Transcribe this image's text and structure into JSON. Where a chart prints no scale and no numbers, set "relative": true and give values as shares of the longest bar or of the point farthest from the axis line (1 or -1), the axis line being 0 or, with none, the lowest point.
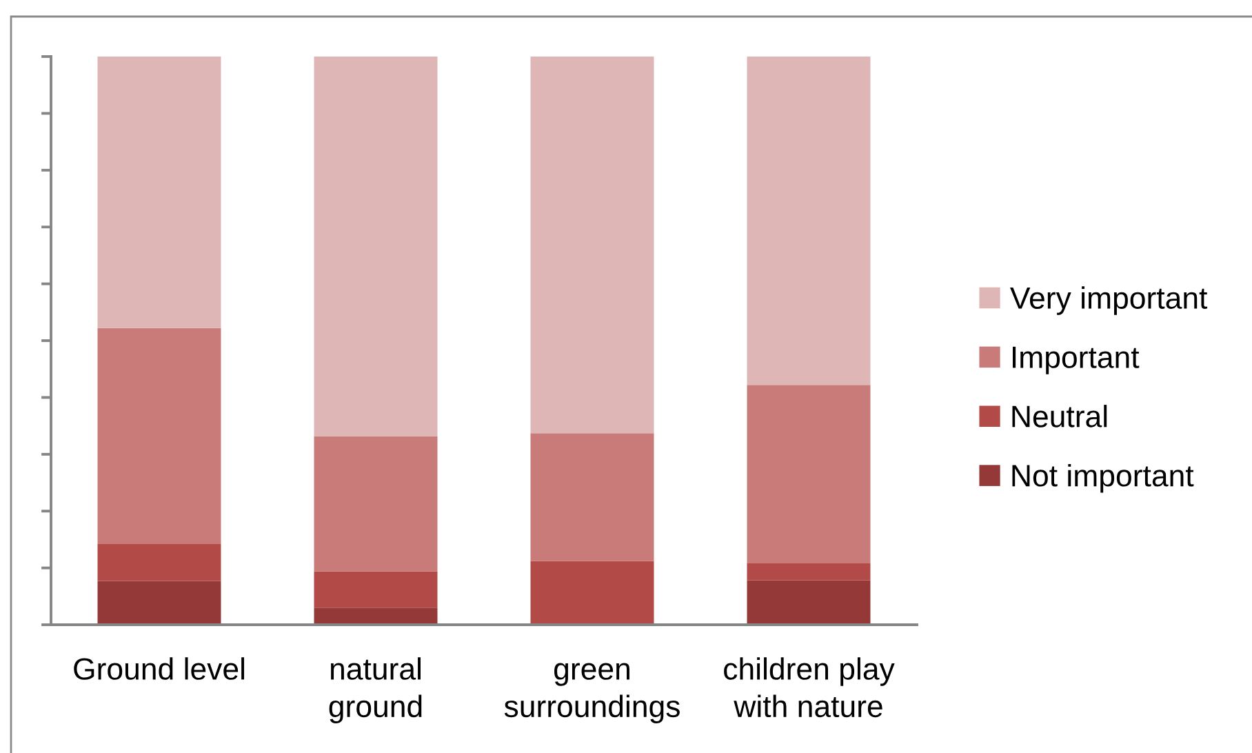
{
  "chart_data": {
    "type": "bar",
    "stacked": true,
    "relative": true,
    "tick_labels": "x",
    "legend": "right",
    "categories": [
      "Ground level",
      "natural\nground",
      "green\nsurroundings",
      "children play\nwith nature"
    ],
    "series": [
      {
        "name": "Not important",
        "color": "#943838",
        "values": [
          0.077,
          0.03,
          0,
          0.078
        ]
      },
      {
        "name": "Neutral",
        "color": "#b24a47",
        "values": [
          0.065,
          0.064,
          0.112,
          0.03
        ]
      },
      {
        "name": "Important",
        "color": "#c97b7a",
        "values": [
          0.38,
          0.238,
          0.225,
          0.314
        ]
      },
      {
        "name": "Very important",
        "color": "#dfb6b6",
        "values": [
          0.478,
          0.668,
          0.663,
          0.578
        ]
      }
    ]
  }
}
